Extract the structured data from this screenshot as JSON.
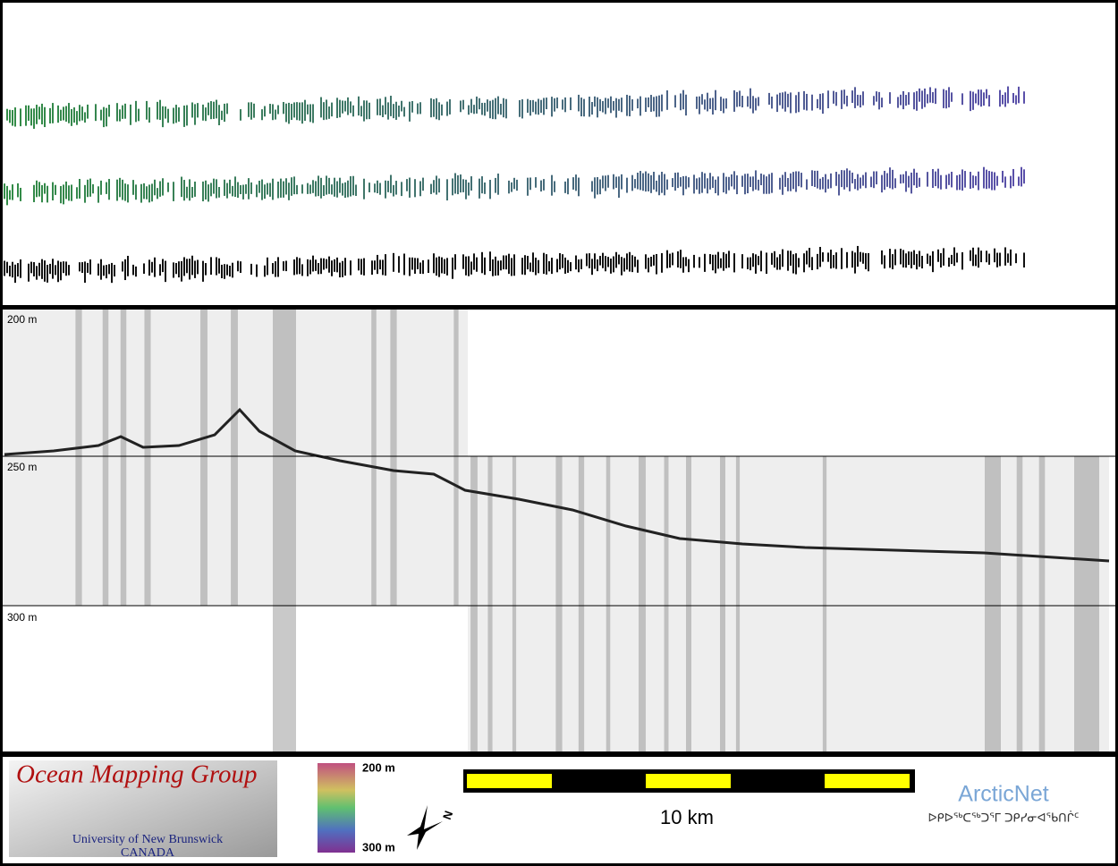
{
  "depth_labels": [
    "200 m",
    "250 m",
    "300 m"
  ],
  "colorbar": {
    "top_label": "200 m",
    "bottom_label": "300 m"
  },
  "scale_bar": {
    "label": "10 km"
  },
  "north_arrow": {
    "label": "N"
  },
  "logo_omg": {
    "title": "Ocean Mapping Group",
    "line1": "University of New Brunswick",
    "line2": "CANADA"
  },
  "logo_arcticnet": {
    "title": "ArcticNet",
    "subtitle": "ᐅᑭᐅᖅᑕᖅᑐᕐᒥ ᑐᑭᓯᓂᐊᖃᑎᒌᑦ"
  }
}
